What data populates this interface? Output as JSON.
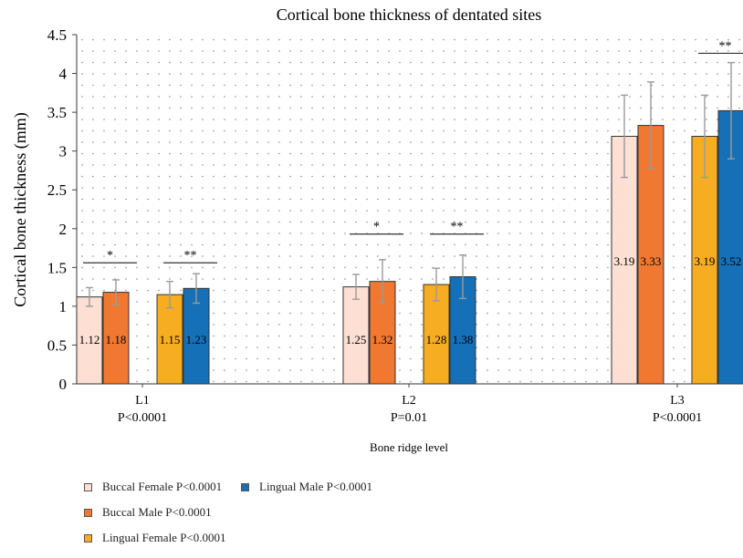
{
  "chart_data": {
    "type": "bar",
    "title": "Cortical bone thickness of dentated sites",
    "ylabel": "Cortical bone thickness (mm)",
    "xlabel": "Bone ridge level",
    "ylim": [
      0,
      4.5
    ],
    "yticks": [
      "0",
      "0.5",
      "1",
      "1.5",
      "2",
      "2.5",
      "3",
      "3.5",
      "4",
      "4.5"
    ],
    "grid": "dotted",
    "legend_position": "bottom-left",
    "groups": [
      {
        "name": "L1",
        "pvalue": "P<0.0001"
      },
      {
        "name": "L2",
        "pvalue": "P=0.01"
      },
      {
        "name": "L3",
        "pvalue": "P<0.0001"
      }
    ],
    "series": [
      {
        "name": "Buccal Female P<0.0001",
        "color": "#fde0d3",
        "values": [
          1.12,
          1.25,
          3.19
        ],
        "labels": [
          "1.12",
          "1.25",
          "3.19"
        ],
        "errors": [
          0.12,
          0.16,
          0.53
        ]
      },
      {
        "name": "Buccal Male P<0.0001",
        "color": "#f07830",
        "values": [
          1.18,
          1.32,
          3.33
        ],
        "labels": [
          "1.18",
          "1.32",
          "3.33"
        ],
        "errors": [
          0.16,
          0.28,
          0.56
        ]
      },
      {
        "name": "Lingual Female P<0.0001",
        "color": "#f7ad22",
        "values": [
          1.15,
          1.28,
          3.19
        ],
        "labels": [
          "1.15",
          "1.28",
          "3.19"
        ],
        "errors": [
          0.17,
          0.21,
          0.53
        ]
      },
      {
        "name": "Lingual Male P<0.0001",
        "color": "#1670b8",
        "values": [
          1.23,
          1.38,
          3.52
        ],
        "labels": [
          "1.23",
          "1.38",
          "3.52"
        ],
        "errors": [
          0.19,
          0.28,
          0.62
        ]
      }
    ],
    "significance": [
      {
        "group": 0,
        "pair": "buccal",
        "label": "*",
        "level": 1.56
      },
      {
        "group": 0,
        "pair": "lingual",
        "label": "**",
        "level": 1.56
      },
      {
        "group": 1,
        "pair": "buccal",
        "label": "*",
        "level": 1.93
      },
      {
        "group": 1,
        "pair": "lingual",
        "label": "**",
        "level": 1.93
      },
      {
        "group": 2,
        "pair": "lingual",
        "label": "**",
        "level": 4.26
      }
    ],
    "legend_layout": [
      [
        0,
        3
      ],
      [
        1
      ],
      [
        2
      ]
    ]
  }
}
